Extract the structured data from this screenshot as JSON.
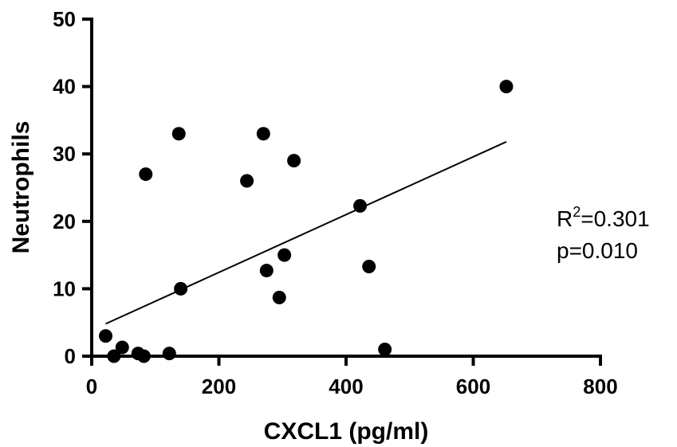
{
  "chart_data": {
    "type": "scatter",
    "xlabel": "CXCL1 (pg/ml)",
    "ylabel": "Neutrophils",
    "xlim": [
      0,
      800
    ],
    "ylim": [
      0,
      50
    ],
    "xticks": [
      "0",
      "200",
      "400",
      "600",
      "800"
    ],
    "yticks": [
      "0",
      "10",
      "20",
      "30",
      "40",
      "50"
    ],
    "grid": false,
    "points": [
      {
        "x": 22,
        "y": 3
      },
      {
        "x": 35,
        "y": 0
      },
      {
        "x": 48,
        "y": 1.3
      },
      {
        "x": 73,
        "y": 0.4
      },
      {
        "x": 82,
        "y": 0
      },
      {
        "x": 85,
        "y": 27
      },
      {
        "x": 122,
        "y": 0.4
      },
      {
        "x": 137,
        "y": 33
      },
      {
        "x": 140,
        "y": 10
      },
      {
        "x": 244,
        "y": 26
      },
      {
        "x": 270,
        "y": 33
      },
      {
        "x": 275,
        "y": 12.7
      },
      {
        "x": 295,
        "y": 8.7
      },
      {
        "x": 303,
        "y": 15
      },
      {
        "x": 318,
        "y": 29
      },
      {
        "x": 422,
        "y": 22.3
      },
      {
        "x": 436,
        "y": 13.3
      },
      {
        "x": 461,
        "y": 1
      },
      {
        "x": 652,
        "y": 40
      }
    ],
    "trendline": {
      "x": [
        22,
        652
      ],
      "y": [
        4.8,
        31.8
      ]
    },
    "annotation": {
      "r_label": "R",
      "r_exponent": "2",
      "r_value": "=0.301",
      "p_text": "p=0.010"
    }
  }
}
